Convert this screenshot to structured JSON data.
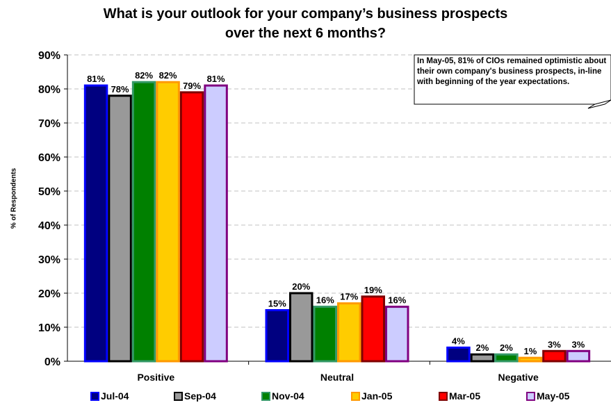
{
  "chart_data": {
    "type": "bar",
    "title_line1": "What is your outlook for your company’s business prospects",
    "title_line2": "over the next 6 months?",
    "ylabel": "% of Respondents",
    "ylim": [
      0,
      90
    ],
    "yticks": [
      "0%",
      "10%",
      "20%",
      "30%",
      "40%",
      "50%",
      "60%",
      "70%",
      "80%",
      "90%"
    ],
    "ytick_values": [
      0,
      10,
      20,
      30,
      40,
      50,
      60,
      70,
      80,
      90
    ],
    "categories": [
      "Positive",
      "Neutral",
      "Negative"
    ],
    "grid": true,
    "legend_position": "bottom",
    "annotation": "In May-05, 81% of CIOs remained optimistic about their own company's business prospects, in-line with beginning of the  year expectations.",
    "series": [
      {
        "name": "Jul-04",
        "fill": "#000080",
        "stroke": "#0000ff",
        "values": [
          81,
          15,
          4
        ],
        "labels": [
          "81%",
          "15%",
          "4%"
        ]
      },
      {
        "name": "Sep-04",
        "fill": "#999999",
        "stroke": "#000000",
        "values": [
          78,
          20,
          2
        ],
        "labels": [
          "78%",
          "20%",
          "2%"
        ]
      },
      {
        "name": "Nov-04",
        "fill": "#008000",
        "stroke": "#339966",
        "values": [
          82,
          16,
          2
        ],
        "labels": [
          "82%",
          "16%",
          "2%"
        ]
      },
      {
        "name": "Jan-05",
        "fill": "#ffcc00",
        "stroke": "#ff9900",
        "values": [
          82,
          17,
          1
        ],
        "labels": [
          "82%",
          "17%",
          "1%"
        ]
      },
      {
        "name": "Mar-05",
        "fill": "#ff0000",
        "stroke": "#800000",
        "values": [
          79,
          19,
          3
        ],
        "labels": [
          "79%",
          "19%",
          "3%"
        ]
      },
      {
        "name": "May-05",
        "fill": "#ccccff",
        "stroke": "#800080",
        "values": [
          81,
          16,
          3
        ],
        "labels": [
          "81%",
          "16%",
          "3%"
        ]
      }
    ]
  }
}
